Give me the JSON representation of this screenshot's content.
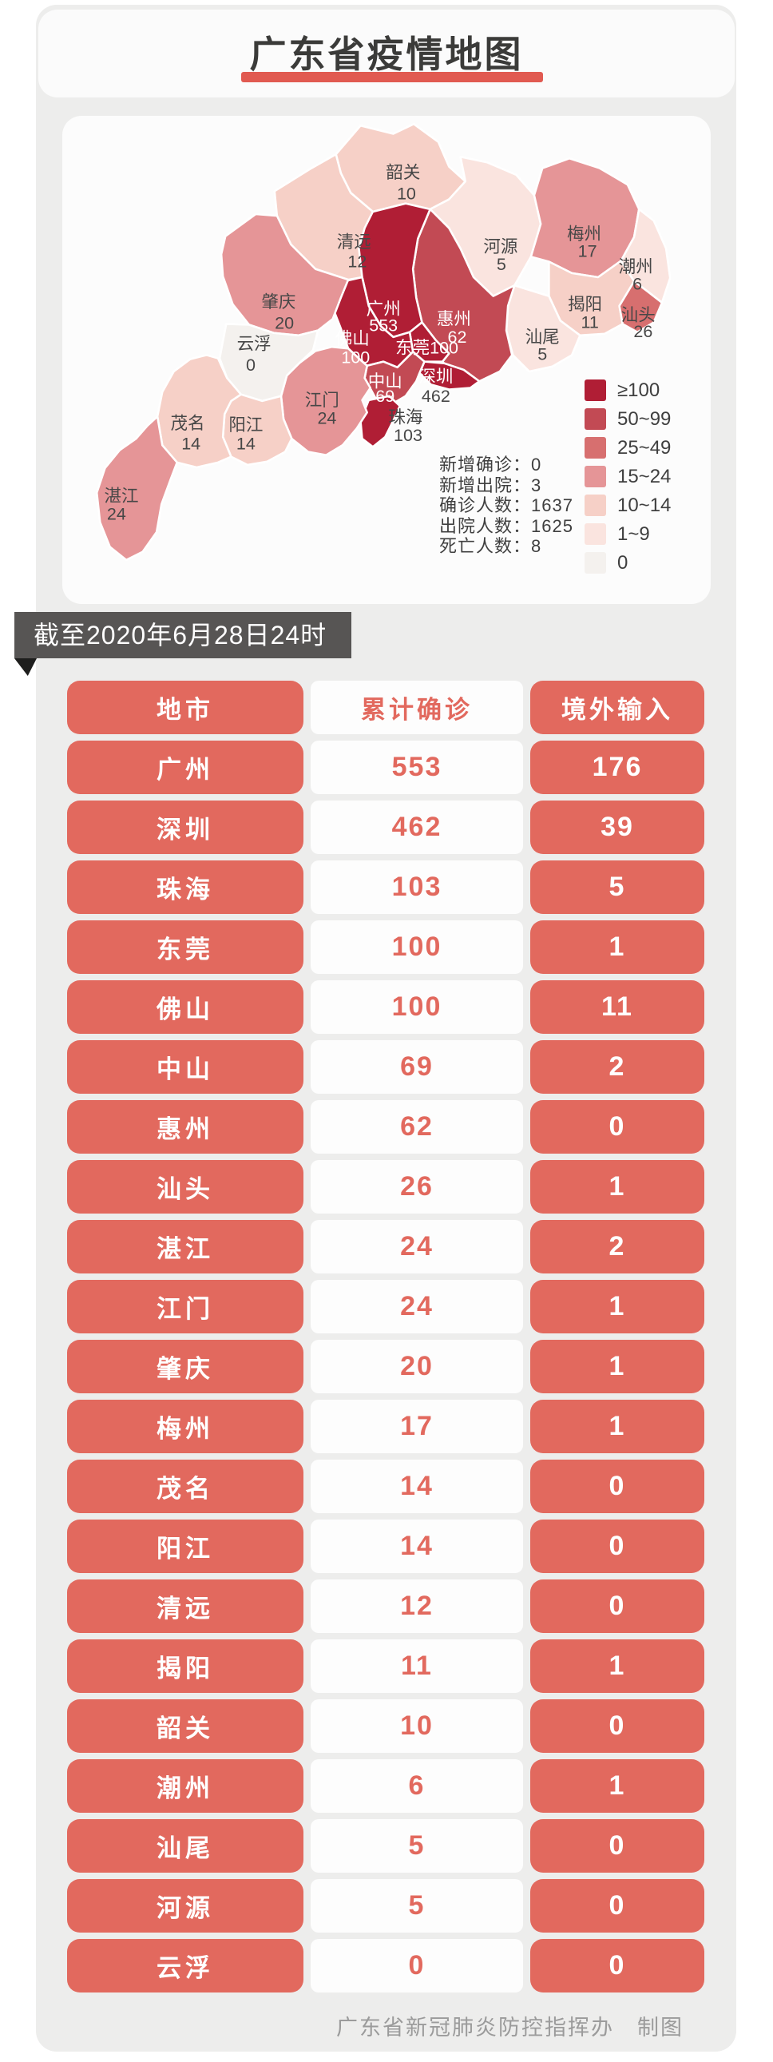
{
  "page": {
    "title": "广东省疫情地图",
    "banner": "截至2020年6月28日24时",
    "footer": "广东省新冠肺炎防控指挥办　制图",
    "accent_red": "#e2695e",
    "underline_red": "#e15a51",
    "banner_gray": "#575554"
  },
  "map": {
    "stats": [
      {
        "label": "新增确诊",
        "value": "0"
      },
      {
        "label": "新增出院",
        "value": "3"
      },
      {
        "label": "确诊人数",
        "value": "1637"
      },
      {
        "label": "出院人数",
        "value": "1625"
      },
      {
        "label": "死亡人数",
        "value": "8"
      }
    ],
    "legend": [
      {
        "label": "≥100",
        "color": "#b01e35"
      },
      {
        "label": "50~99",
        "color": "#c24a54"
      },
      {
        "label": "25~49",
        "color": "#d76f6f"
      },
      {
        "label": "15~24",
        "color": "#e59597"
      },
      {
        "label": "10~14",
        "color": "#f6d0c7"
      },
      {
        "label": "1~9",
        "color": "#fae4df"
      },
      {
        "label": "0",
        "color": "#f4f1ee"
      }
    ],
    "regions": [
      {
        "name": "韶关",
        "value": "10",
        "fill": "#f6d0c7",
        "label_color": "#474747",
        "value_color": "#474747"
      },
      {
        "name": "清远",
        "value": "12",
        "fill": "#f6d0c7",
        "label_color": "#474747",
        "value_color": "#474747"
      },
      {
        "name": "河源",
        "value": "5",
        "fill": "#fae4df",
        "label_color": "#474747",
        "value_color": "#474747"
      },
      {
        "name": "梅州",
        "value": "17",
        "fill": "#e59597",
        "label_color": "#474747",
        "value_color": "#474747"
      },
      {
        "name": "潮州",
        "value": "6",
        "fill": "#fae4df",
        "label_color": "#474747",
        "value_color": "#474747"
      },
      {
        "name": "揭阳",
        "value": "11",
        "fill": "#f6d0c7",
        "label_color": "#474747",
        "value_color": "#474747"
      },
      {
        "name": "汕头",
        "value": "26",
        "fill": "#d76f6f",
        "label_color": "#474747",
        "value_color": "#474747"
      },
      {
        "name": "汕尾",
        "value": "5",
        "fill": "#fae4df",
        "label_color": "#474747",
        "value_color": "#474747"
      },
      {
        "name": "惠州",
        "value": "62",
        "fill": "#c24a54",
        "label_color": "#ffffff",
        "value_color": "#ffffff"
      },
      {
        "name": "东莞",
        "value": "100",
        "fill": "#b01e35",
        "label_color": "#ffffff",
        "value_color": "#ffffff",
        "inline": true
      },
      {
        "name": "深圳",
        "value": "462",
        "fill": "#b01e35",
        "label_color": "#ffffff",
        "value_color": "#474747"
      },
      {
        "name": "广州",
        "value": "553",
        "fill": "#b01e35",
        "label_color": "#ffffff",
        "value_color": "#ffffff"
      },
      {
        "name": "佛山",
        "value": "100",
        "fill": "#b01e35",
        "label_color": "#ffffff",
        "value_color": "#ffffff"
      },
      {
        "name": "中山",
        "value": "69",
        "fill": "#c24a54",
        "label_color": "#ffffff",
        "value_color": "#ffffff"
      },
      {
        "name": "珠海",
        "value": "103",
        "fill": "#b01e35",
        "label_color": "#474747",
        "value_color": "#474747"
      },
      {
        "name": "江门",
        "value": "24",
        "fill": "#e59597",
        "label_color": "#474747",
        "value_color": "#474747"
      },
      {
        "name": "肇庆",
        "value": "20",
        "fill": "#e59597",
        "label_color": "#474747",
        "value_color": "#474747"
      },
      {
        "name": "云浮",
        "value": "0",
        "fill": "#f4f1ee",
        "label_color": "#474747",
        "value_color": "#474747"
      },
      {
        "name": "阳江",
        "value": "14",
        "fill": "#f6d0c7",
        "label_color": "#474747",
        "value_color": "#474747"
      },
      {
        "name": "茂名",
        "value": "14",
        "fill": "#f6d0c7",
        "label_color": "#474747",
        "value_color": "#474747"
      },
      {
        "name": "湛江",
        "value": "24",
        "fill": "#e59597",
        "label_color": "#474747",
        "value_color": "#474747"
      }
    ]
  },
  "table": {
    "headers": [
      "地市",
      "累计确诊",
      "境外输入"
    ],
    "rows": [
      [
        "广州",
        "553",
        "176"
      ],
      [
        "深圳",
        "462",
        "39"
      ],
      [
        "珠海",
        "103",
        "5"
      ],
      [
        "东莞",
        "100",
        "1"
      ],
      [
        "佛山",
        "100",
        "11"
      ],
      [
        "中山",
        "69",
        "2"
      ],
      [
        "惠州",
        "62",
        "0"
      ],
      [
        "汕头",
        "26",
        "1"
      ],
      [
        "湛江",
        "24",
        "2"
      ],
      [
        "江门",
        "24",
        "1"
      ],
      [
        "肇庆",
        "20",
        "1"
      ],
      [
        "梅州",
        "17",
        "1"
      ],
      [
        "茂名",
        "14",
        "0"
      ],
      [
        "阳江",
        "14",
        "0"
      ],
      [
        "清远",
        "12",
        "0"
      ],
      [
        "揭阳",
        "11",
        "1"
      ],
      [
        "韶关",
        "10",
        "0"
      ],
      [
        "潮州",
        "6",
        "1"
      ],
      [
        "汕尾",
        "5",
        "0"
      ],
      [
        "河源",
        "5",
        "0"
      ],
      [
        "云浮",
        "0",
        "0"
      ]
    ]
  },
  "chart_data": {
    "type": "table",
    "title": "广东省疫情地图",
    "as_of": "截至2020年6月28日24时",
    "map_type": "choropleth",
    "columns": [
      "地市",
      "累计确诊",
      "境外输入"
    ],
    "rows": [
      [
        "广州",
        553,
        176
      ],
      [
        "深圳",
        462,
        39
      ],
      [
        "珠海",
        103,
        5
      ],
      [
        "东莞",
        100,
        1
      ],
      [
        "佛山",
        100,
        11
      ],
      [
        "中山",
        69,
        2
      ],
      [
        "惠州",
        62,
        0
      ],
      [
        "汕头",
        26,
        1
      ],
      [
        "湛江",
        24,
        2
      ],
      [
        "江门",
        24,
        1
      ],
      [
        "肇庆",
        20,
        1
      ],
      [
        "梅州",
        17,
        1
      ],
      [
        "茂名",
        14,
        0
      ],
      [
        "阳江",
        14,
        0
      ],
      [
        "清远",
        12,
        0
      ],
      [
        "揭阳",
        11,
        1
      ],
      [
        "韶关",
        10,
        0
      ],
      [
        "潮州",
        6,
        1
      ],
      [
        "汕尾",
        5,
        0
      ],
      [
        "河源",
        5,
        0
      ],
      [
        "云浮",
        0,
        0
      ]
    ],
    "legend_buckets": [
      "≥100",
      "50~99",
      "25~49",
      "15~24",
      "10~14",
      "1~9",
      "0"
    ],
    "summary": {
      "新增确诊": 0,
      "新增出院": 3,
      "确诊人数": 1637,
      "出院人数": 1625,
      "死亡人数": 8
    }
  }
}
